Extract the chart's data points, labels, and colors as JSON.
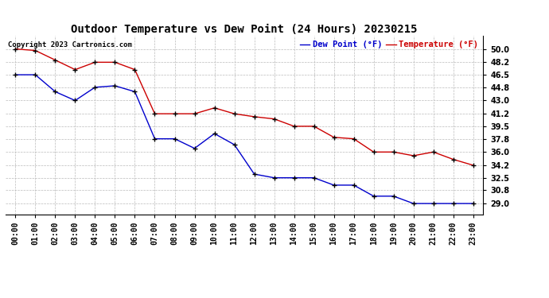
{
  "title": "Outdoor Temperature vs Dew Point (24 Hours) 20230215",
  "copyright": "Copyright 2023 Cartronics.com",
  "legend_dew": "Dew Point (°F)",
  "legend_temp": "Temperature (°F)",
  "x_labels": [
    "00:00",
    "01:00",
    "02:00",
    "03:00",
    "04:00",
    "05:00",
    "06:00",
    "07:00",
    "08:00",
    "09:00",
    "10:00",
    "11:00",
    "12:00",
    "13:00",
    "14:00",
    "15:00",
    "16:00",
    "17:00",
    "18:00",
    "19:00",
    "20:00",
    "21:00",
    "22:00",
    "23:00"
  ],
  "temperature": [
    50.0,
    49.8,
    48.5,
    47.2,
    48.2,
    48.2,
    47.2,
    41.2,
    41.2,
    41.2,
    42.0,
    41.2,
    40.8,
    40.5,
    39.5,
    39.5,
    38.0,
    37.8,
    36.0,
    36.0,
    35.5,
    36.0,
    35.0,
    34.2
  ],
  "dew_point": [
    46.5,
    46.5,
    44.2,
    43.0,
    44.8,
    45.0,
    44.2,
    37.8,
    37.8,
    36.5,
    38.5,
    37.0,
    33.0,
    32.5,
    32.5,
    32.5,
    31.5,
    31.5,
    30.0,
    30.0,
    29.0,
    29.0,
    29.0,
    29.0
  ],
  "ylim_min": 27.5,
  "ylim_max": 51.8,
  "yticks": [
    29.0,
    30.8,
    32.5,
    34.2,
    36.0,
    37.8,
    39.5,
    41.2,
    43.0,
    44.8,
    46.5,
    48.2,
    50.0
  ],
  "temp_color": "#cc0000",
  "dew_color": "#0000cc",
  "bg_color": "#ffffff",
  "grid_color": "#bbbbbb",
  "title_fontsize": 10,
  "tick_fontsize": 7,
  "legend_fontsize": 7.5,
  "copyright_fontsize": 6.5
}
